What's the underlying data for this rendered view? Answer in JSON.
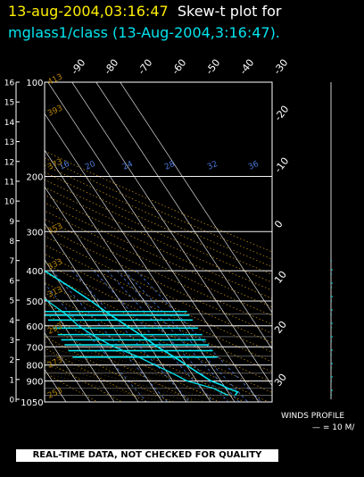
{
  "header": {
    "timestamp": "13-aug-2004,03:16:47",
    "plot_label": "Skew-t plot for",
    "source": "mglass1/class (13-Aug-2004,3:16:47)."
  },
  "footer": {
    "winds_label": "WINDS PROFILE",
    "winds_scale": "— = 10 M/",
    "quality_banner": "REAL-TIME DATA, NOT CHECKED FOR QUALITY"
  },
  "colors": {
    "title_timestamp": "#ffee00",
    "title_source": "#00e5ee",
    "sounding": "#00e5ee",
    "isobar": "#ffffff",
    "dry_adiabat": "#b8860b",
    "mixing_ratio": "#4a78d8",
    "isotherm": "#ffffff"
  },
  "chart_data": {
    "type": "line",
    "title": "Skew-t plot for mglass1/class (13-Aug-2004,3:16:47).",
    "pressure_labels": [
      "100",
      "200",
      "300",
      "400",
      "500",
      "600",
      "700",
      "800",
      "900",
      "1050"
    ],
    "pressure_levels_hpa": [
      100,
      200,
      300,
      400,
      500,
      600,
      700,
      800,
      900,
      1050
    ],
    "isobars_hpa": [
      100,
      200,
      300,
      400,
      500,
      550,
      600,
      650,
      700,
      750,
      800,
      850,
      900,
      950,
      1000,
      1050
    ],
    "height_km_ticks": [
      "0",
      "1",
      "2",
      "3",
      "4",
      "5",
      "6",
      "7",
      "8",
      "9",
      "10",
      "11",
      "12",
      "13",
      "14",
      "15",
      "16"
    ],
    "top_temperature_labels": [
      "-90",
      "-80",
      "-70",
      "-60",
      "-50",
      "-40",
      "-30"
    ],
    "right_temperature_labels": [
      "-20",
      "-10",
      "0",
      "10",
      "20",
      "30"
    ],
    "mixing_ratio_labels": [
      "16",
      "20",
      "24",
      "28",
      "32",
      "36"
    ],
    "theta_labels": [
      "413",
      "393",
      "373",
      "353",
      "333",
      "313",
      "293",
      "273",
      "253"
    ],
    "temperature_profile": [
      {
        "p": 1000,
        "t": 22
      },
      {
        "p": 975,
        "t": 24
      },
      {
        "p": 950,
        "t": 21
      },
      {
        "p": 925,
        "t": 19
      },
      {
        "p": 900,
        "t": 16
      },
      {
        "p": 850,
        "t": 13
      },
      {
        "p": 800,
        "t": 10
      },
      {
        "p": 750,
        "t": 7
      },
      {
        "p": 700,
        "t": 3
      },
      {
        "p": 650,
        "t": 0
      },
      {
        "p": 600,
        "t": -4
      },
      {
        "p": 550,
        "t": -8
      },
      {
        "p": 500,
        "t": -12
      },
      {
        "p": 450,
        "t": -17
      },
      {
        "p": 400,
        "t": -23
      },
      {
        "p": 350,
        "t": -31
      },
      {
        "p": 300,
        "t": -40
      },
      {
        "p": 250,
        "t": -49
      },
      {
        "p": 200,
        "t": -56
      },
      {
        "p": 150,
        "t": -62
      },
      {
        "p": 120,
        "t": -66
      },
      {
        "p": 100,
        "t": -70
      }
    ],
    "dewpoint_profile": [
      {
        "p": 1000,
        "t": 19
      },
      {
        "p": 950,
        "t": 15
      },
      {
        "p": 900,
        "t": 6
      },
      {
        "p": 850,
        "t": 2
      },
      {
        "p": 800,
        "t": -3
      },
      {
        "p": 750,
        "t": -8
      },
      {
        "p": 700,
        "t": -15
      },
      {
        "p": 650,
        "t": -20
      },
      {
        "p": 600,
        "t": -24
      },
      {
        "p": 550,
        "t": -26
      },
      {
        "p": 500,
        "t": -30
      },
      {
        "p": 450,
        "t": -36
      },
      {
        "p": 400,
        "t": -40
      },
      {
        "p": 350,
        "t": -52
      },
      {
        "p": 300,
        "t": -63
      },
      {
        "p": 250,
        "t": -72
      },
      {
        "p": 200,
        "t": -78
      },
      {
        "p": 150,
        "t": -82
      },
      {
        "p": 100,
        "t": -86
      }
    ],
    "spike_levels_hpa": [
      540,
      555,
      575,
      610,
      640,
      665,
      690,
      720,
      755
    ],
    "xlabel": "",
    "ylabel": "",
    "grid": true
  }
}
